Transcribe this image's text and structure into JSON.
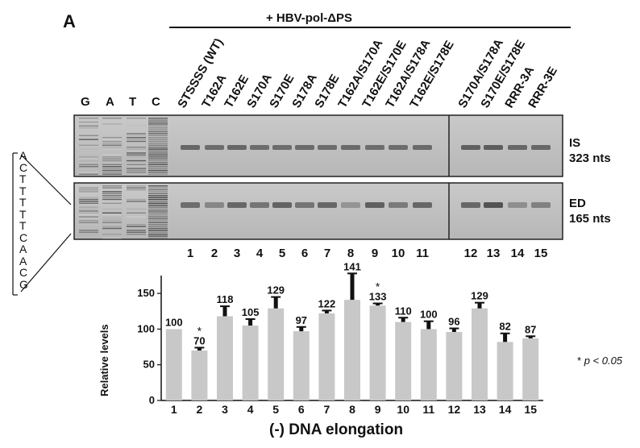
{
  "figure": {
    "panel_letter": "A",
    "construct_label": "+ HBV-pol-ΔPS",
    "sequencing_lanes": [
      "G",
      "A",
      "T",
      "C"
    ],
    "lane_labels": [
      "STSSSS (WT)",
      "T162A",
      "T162E",
      "S170A",
      "S170E",
      "S178A",
      "S178E",
      "T162A/S170A",
      "T162E/S170E",
      "T162A/S178A",
      "T162E/S178E",
      "S170A/S178A",
      "S170E/S178E",
      "RRR-3A",
      "RRR-3E"
    ],
    "band_top": {
      "name": "IS",
      "size": "323 nts"
    },
    "band_bottom": {
      "name": "ED",
      "size": "165 nts"
    },
    "lane_numbers": [
      "1",
      "2",
      "3",
      "4",
      "5",
      "6",
      "7",
      "8",
      "9",
      "10",
      "11",
      "12",
      "13",
      "14",
      "15"
    ],
    "sequence_letters": [
      "A",
      "C",
      "T",
      "T",
      "T",
      "T",
      "T",
      "C",
      "A",
      "A",
      "C",
      "G"
    ],
    "significance_note": "p < 0.05",
    "significance_star": "*"
  },
  "chart_data": {
    "type": "bar",
    "categories": [
      "1",
      "2",
      "3",
      "4",
      "5",
      "6",
      "7",
      "8",
      "9",
      "10",
      "11",
      "12",
      "13",
      "14",
      "15"
    ],
    "values": [
      100,
      70,
      118,
      105,
      129,
      97,
      122,
      141,
      133,
      110,
      100,
      96,
      129,
      82,
      87
    ],
    "error": [
      0,
      4,
      14,
      9,
      16,
      6,
      4,
      37,
      3,
      6,
      11,
      5,
      8,
      12,
      3
    ],
    "significant": [
      false,
      true,
      false,
      false,
      false,
      false,
      false,
      false,
      true,
      false,
      false,
      false,
      false,
      false,
      false
    ],
    "data_labels": [
      "100",
      "70",
      "118",
      "105",
      "129",
      "97",
      "122",
      "141",
      "133",
      "110",
      "100",
      "96",
      "129",
      "82",
      "87"
    ],
    "xlabel": "(-) DNA elongation",
    "ylabel": "Relative levels",
    "ylim": [
      0,
      175
    ],
    "yticks": [
      0,
      50,
      100,
      150
    ],
    "bar_color": "#c8c8c8",
    "error_color": "#111111"
  }
}
